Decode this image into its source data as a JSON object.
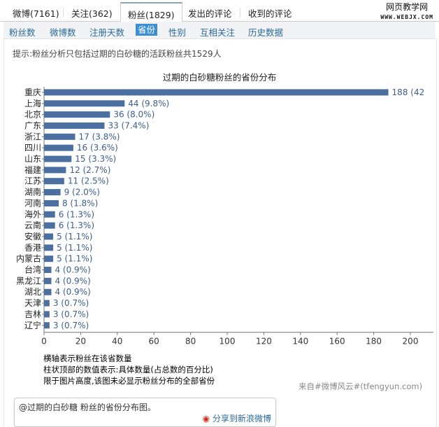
{
  "tabs": [
    {
      "label": "微博(7161)"
    },
    {
      "label": "关注(362)"
    },
    {
      "label": "粉丝(1829)",
      "active": true
    },
    {
      "label": "发出的评论"
    },
    {
      "label": "收到的评论"
    }
  ],
  "logo": {
    "title": "网页教学网",
    "url": "WWW.WEBJX.COM"
  },
  "subnav": [
    {
      "label": "粉丝数"
    },
    {
      "label": "微博数"
    },
    {
      "label": "注册天数"
    },
    {
      "label": "省份",
      "active": true
    },
    {
      "label": "性别"
    },
    {
      "label": "互相关注"
    },
    {
      "label": "历史数据"
    }
  ],
  "tip": "提示:粉丝分析只包括过期的白砂糖的活跃粉丝共1529人",
  "chart_data": {
    "type": "bar",
    "orientation": "horizontal",
    "title": "过期的白砂糖粉丝的省份分布",
    "categories": [
      "重庆",
      "上海",
      "北京",
      "广东",
      "浙江",
      "四川",
      "山东",
      "福建",
      "江苏",
      "湖南",
      "河南",
      "海外",
      "云南",
      "安徽",
      "香港",
      "内蒙古",
      "台湾",
      "黑龙江",
      "湖北",
      "天津",
      "吉林",
      "辽宁"
    ],
    "values": [
      188,
      44,
      36,
      33,
      17,
      16,
      15,
      12,
      11,
      9,
      8,
      6,
      6,
      5,
      5,
      5,
      4,
      4,
      4,
      3,
      3,
      3
    ],
    "labels": [
      "188 (42",
      "44 (9.8%)",
      "36 (8.0%)",
      "33 (7.4%)",
      "17 (3.8%)",
      "16 (3.6%)",
      "15 (3.3%)",
      "12 (2.7%)",
      "11 (2.5%)",
      "9 (2.0%)",
      "8 (1.8%)",
      "6 (1.3%)",
      "6 (1.3%)",
      "5 (1.1%)",
      "5 (1.1%)",
      "5 (1.1%)",
      "4 (0.9%)",
      "4 (0.9%)",
      "4 (0.9%)",
      "3 (0.7%)",
      "3 (0.7%)",
      "3 (0.7%)"
    ],
    "xticks": [
      "0",
      "20",
      "40",
      "60",
      "80",
      "100",
      "120",
      "140",
      "160",
      "180",
      "200"
    ],
    "xlim": [
      0,
      200
    ],
    "bar_color": "#4a6fa0",
    "label_color": "#3a5f8f"
  },
  "notes": [
    "横轴表示粉丝在该省数量",
    "柱状顶部的数值表示:具体数量(占总数的百分比)",
    "限于图片高度,该图未必显示粉丝分布的全部省份"
  ],
  "source": "来自#微博风云#(tfengyun.com)",
  "share": {
    "text": "@过期的白砂糖 粉丝的省份分布图。",
    "button": "分享到新浪微博"
  }
}
